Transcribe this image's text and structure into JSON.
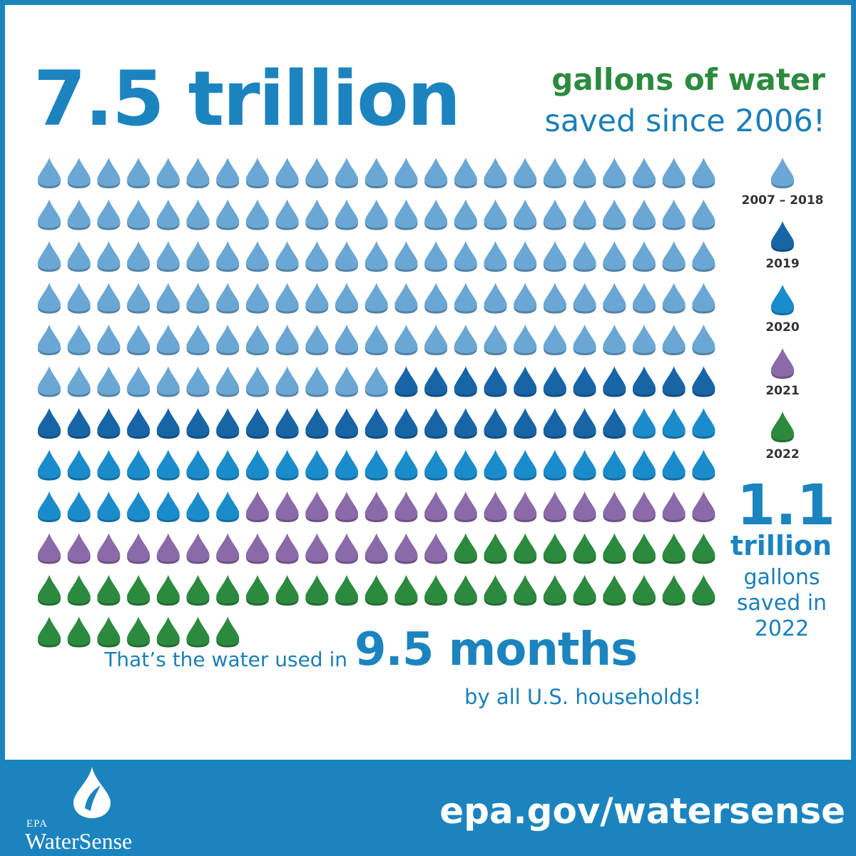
{
  "headline": {
    "amount": "7.5 trillion",
    "line1": "gallons of water",
    "line2": "saved since 2006!"
  },
  "chart_data": {
    "type": "pictogram",
    "unit": "water drop",
    "series": [
      {
        "name": "2007 – 2018",
        "count": 127,
        "color": "#6aa7d4"
      },
      {
        "name": "2019",
        "count": 31,
        "color": "#1765a7"
      },
      {
        "name": "2020",
        "count": 33,
        "color": "#1a8ccb"
      },
      {
        "name": "2021",
        "count": 30,
        "color": "#8a6aa8"
      },
      {
        "name": "2022",
        "count": 39,
        "color": "#2c8a3f"
      }
    ]
  },
  "legend": {
    "items": [
      {
        "label": "2007 – 2018",
        "color": "#6aa7d4"
      },
      {
        "label": "2019",
        "color": "#1765a7"
      },
      {
        "label": "2020",
        "color": "#1a8ccb"
      },
      {
        "label": "2021",
        "color": "#8a6aa8"
      },
      {
        "label": "2022",
        "color": "#2c8a3f"
      }
    ]
  },
  "callout": {
    "amount": "1.1",
    "unit": "trillion",
    "desc_line1": "gallons",
    "desc_line2": "saved in",
    "desc_line3": "2022"
  },
  "comparison": {
    "prefix": "That’s  the water used in",
    "highlight": "9.5 months",
    "suffix": "by all U.S. households!"
  },
  "footer": {
    "logo_agency": "EPA",
    "logo_name": "WaterSense",
    "url": "epa.gov/watersense"
  },
  "colors": {
    "brand_blue": "#1b84bf",
    "green": "#2c8a3f"
  }
}
